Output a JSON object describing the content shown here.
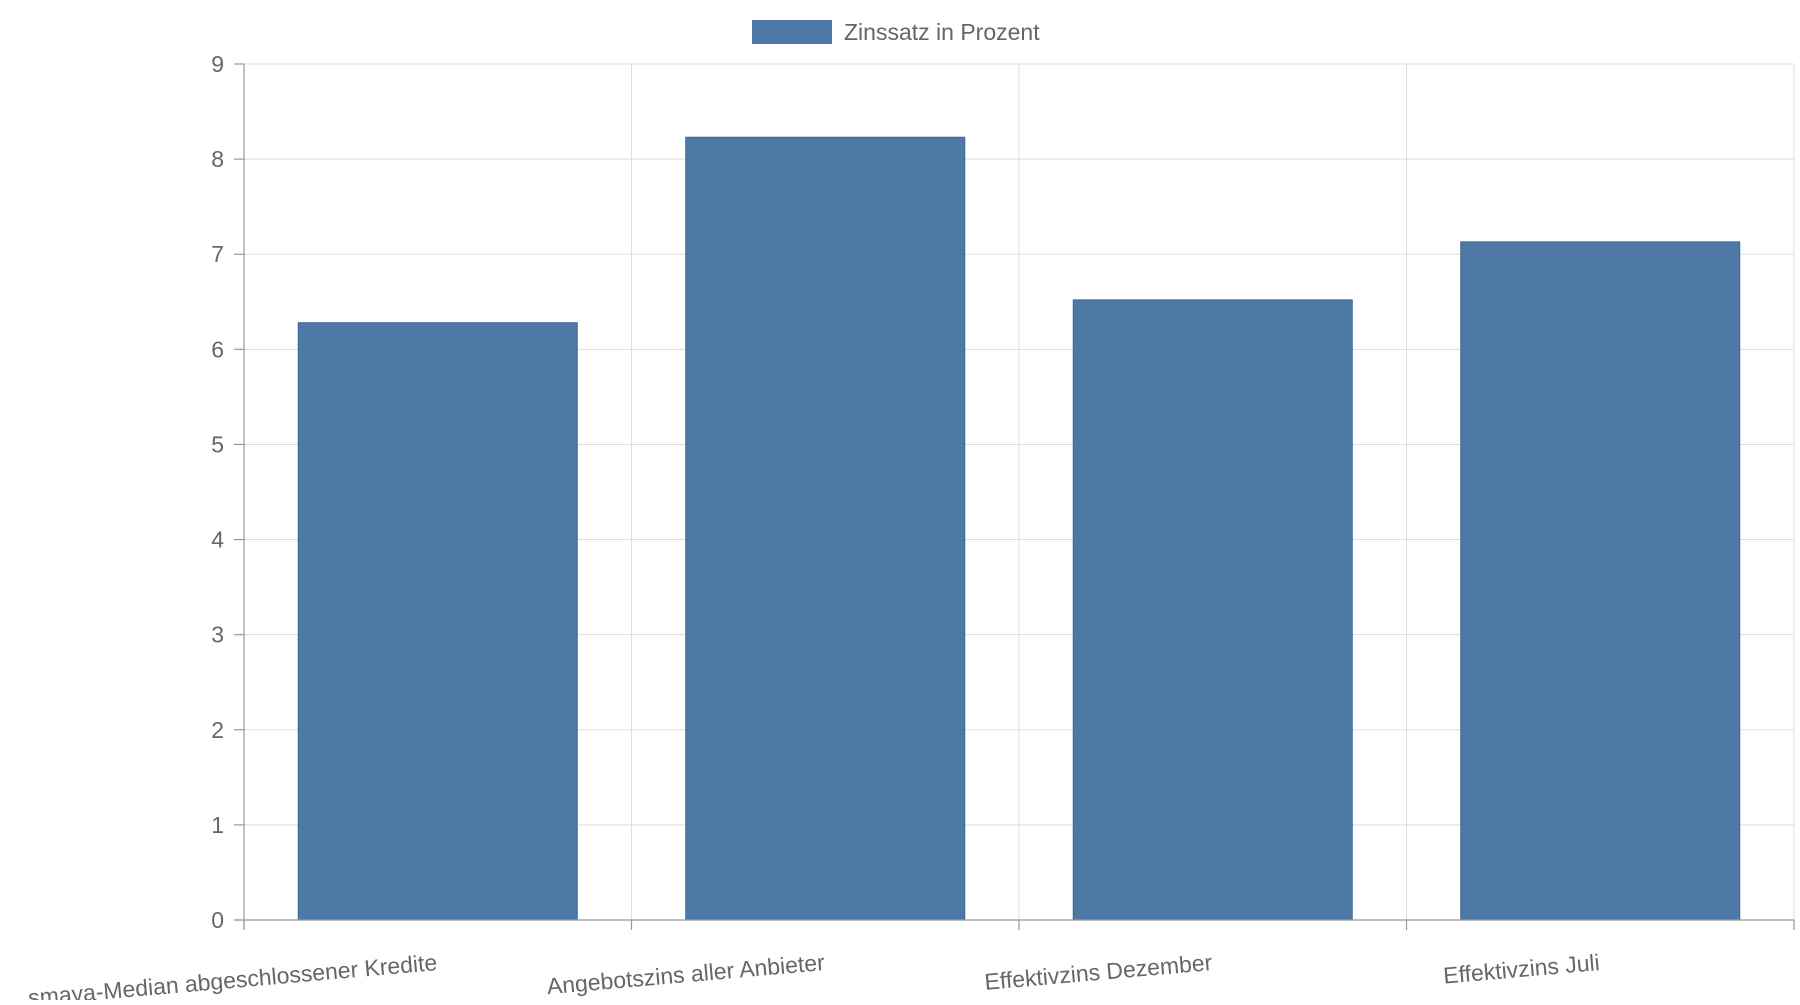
{
  "chart_data": {
    "type": "bar",
    "categories": [
      "smava-Median abgeschlossener Kredite",
      "Angebotszins aller Anbieter",
      "Effektivzins Dezember",
      "Effektivzins Juli"
    ],
    "series": [
      {
        "name": "Zinssatz in Prozent",
        "values": [
          6.28,
          8.23,
          6.52,
          7.13
        ],
        "color": "#4e78a5"
      }
    ],
    "ylim": [
      0,
      9
    ],
    "yticks": [
      0,
      1,
      2,
      3,
      4,
      5,
      6,
      7,
      8,
      9
    ],
    "grid": true,
    "legend_position": "top-center"
  },
  "legend": {
    "label": "Zinssatz in Prozent",
    "color": "#4e78a5"
  }
}
